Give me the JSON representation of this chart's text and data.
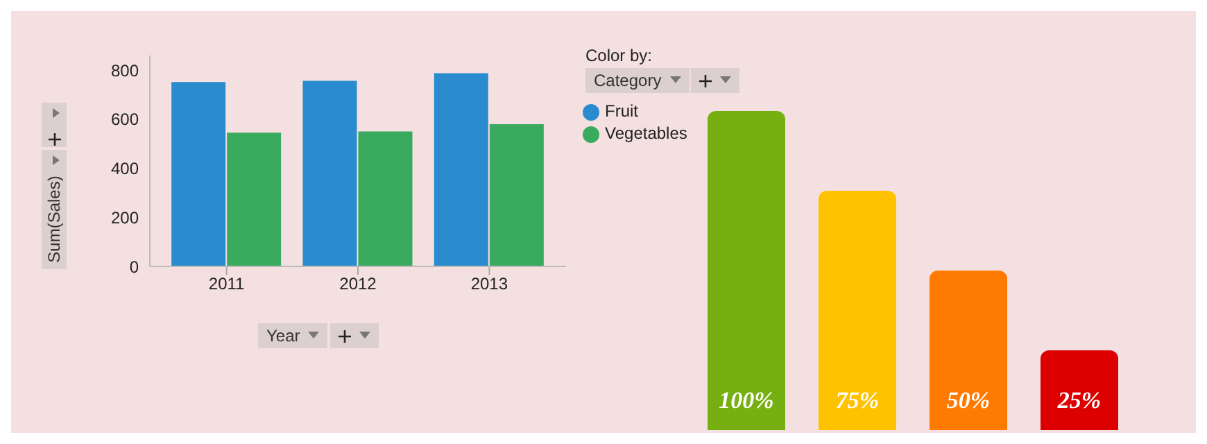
{
  "chart_data": [
    {
      "type": "bar",
      "ylabel": "Sum(Sales)",
      "xlabel": "Year",
      "legend_title": "Color by:",
      "annotations": [
        "Category"
      ],
      "categories": [
        "2011",
        "2012",
        "2013"
      ],
      "series": [
        {
          "name": "Fruit",
          "color": "#2a8ccf",
          "values": [
            752,
            757,
            788
          ]
        },
        {
          "name": "Vegetables",
          "color": "#3aab5e",
          "values": [
            545,
            550,
            580
          ]
        }
      ],
      "ylim": [
        0,
        860
      ],
      "yticks": [
        0,
        200,
        400,
        600,
        800
      ],
      "legend": "right"
    },
    {
      "type": "bar",
      "categories": [
        null,
        null,
        null,
        null
      ],
      "values": [
        100,
        75,
        50,
        25
      ],
      "colors": [
        "#76b010",
        "#ffc200",
        "#ff7a00",
        "#dc0000"
      ],
      "value_labels": [
        "100%",
        "75%",
        "50%",
        "25%"
      ]
    }
  ]
}
